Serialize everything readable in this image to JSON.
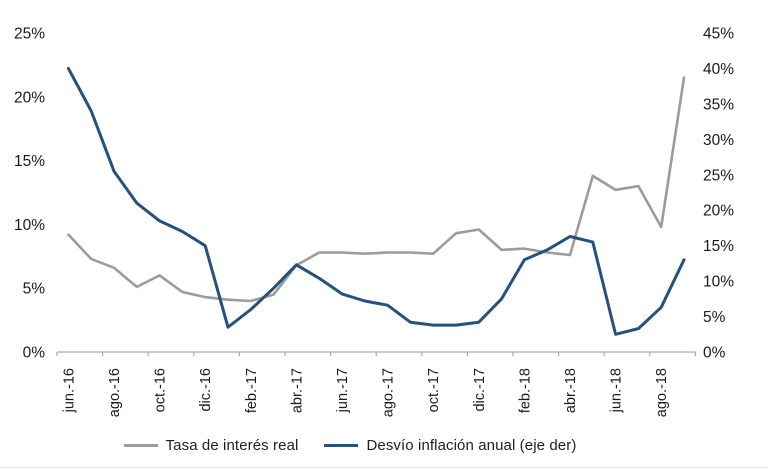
{
  "page": {
    "background": "#ffffff"
  },
  "chart_data": {
    "type": "line",
    "x": [
      "jun.-16",
      "jul.-16",
      "ago.-16",
      "sep.-16",
      "oct.-16",
      "nov.-16",
      "dic.-16",
      "ene.-17",
      "feb.-17",
      "mar.-17",
      "abr.-17",
      "may.-17",
      "jun.-17",
      "jul.-17",
      "ago.-17",
      "sep.-17",
      "oct.-17",
      "nov.-17",
      "dic.-17",
      "ene.-18",
      "feb.-18",
      "mar.-18",
      "abr.-18",
      "may.-18",
      "jun.-18",
      "jul.-18",
      "ago.-18",
      "sep.-18"
    ],
    "x_ticklabels": [
      "jun.-16",
      "ago.-16",
      "oct.-16",
      "dic.-16",
      "feb.-17",
      "abr.-17",
      "jun.-17",
      "ago.-17",
      "oct.-17",
      "dic.-17",
      "feb.-18",
      "abr.-18",
      "jun.-18",
      "ago.-18"
    ],
    "series": [
      {
        "name": "Tasa de interés real",
        "axis": "left",
        "color": "#9c9c9c",
        "stroke_width": 2.6,
        "values": [
          9.2,
          7.3,
          6.6,
          5.1,
          6.0,
          4.7,
          4.3,
          4.1,
          4.0,
          4.5,
          6.8,
          7.8,
          7.8,
          7.7,
          7.8,
          7.8,
          7.7,
          9.3,
          9.6,
          8.0,
          8.1,
          7.8,
          7.6,
          13.8,
          12.7,
          13.0,
          9.8,
          21.5
        ]
      },
      {
        "name": "Desvío inflación anual (eje der)",
        "axis": "right",
        "color": "#25517b",
        "stroke_width": 3,
        "values": [
          40.0,
          34.0,
          25.5,
          21.0,
          18.5,
          17.0,
          15.0,
          3.5,
          6.0,
          9.0,
          12.3,
          10.4,
          8.2,
          7.2,
          6.6,
          4.2,
          3.8,
          3.8,
          4.2,
          7.5,
          13.0,
          14.4,
          16.3,
          15.5,
          2.5,
          3.3,
          6.3,
          13.0
        ]
      }
    ],
    "left_axis": {
      "min": 0,
      "max": 25,
      "step": 5,
      "ticklabels": [
        "0%",
        "5%",
        "10%",
        "15%",
        "20%",
        "25%"
      ]
    },
    "right_axis": {
      "min": 0,
      "max": 45,
      "step": 5,
      "ticklabels": [
        "0%",
        "5%",
        "10%",
        "15%",
        "20%",
        "25%",
        "30%",
        "35%",
        "40%",
        "45%"
      ]
    },
    "grid": false,
    "legend_position": "bottom",
    "axis_line_color": "#ababab",
    "tick_label_color": "#1a1a1a"
  }
}
